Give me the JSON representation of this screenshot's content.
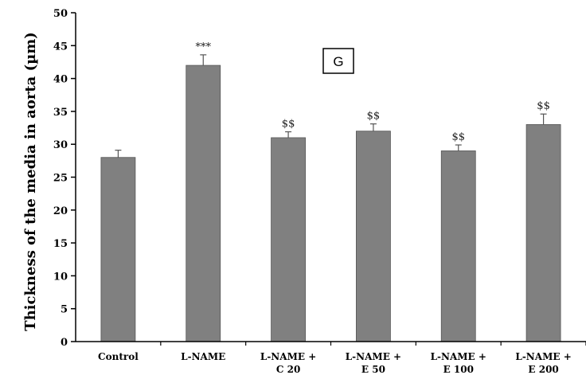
{
  "chart_data": {
    "type": "bar",
    "categories": [
      [
        "Control"
      ],
      [
        "L-NAME"
      ],
      [
        "L-NAME +",
        "C 20"
      ],
      [
        "L-NAME +",
        "E 50"
      ],
      [
        "L-NAME +",
        "E 100"
      ],
      [
        "L-NAME +",
        "E 200"
      ]
    ],
    "values": [
      28,
      42,
      31,
      32,
      29,
      33
    ],
    "error": [
      1.1,
      1.6,
      0.9,
      1.1,
      0.9,
      1.6
    ],
    "annotations": [
      "",
      "***",
      "$$",
      "$$",
      "$$",
      "$$"
    ],
    "ylabel": "Thickness of the media in aorta (µm)",
    "xlabel": "",
    "title": "",
    "ylim": [
      0,
      50
    ],
    "yticks": [
      0,
      5,
      10,
      15,
      20,
      25,
      30,
      35,
      40,
      45,
      50
    ],
    "panel_label": "G",
    "bar_color": "#808080",
    "grid": false
  }
}
